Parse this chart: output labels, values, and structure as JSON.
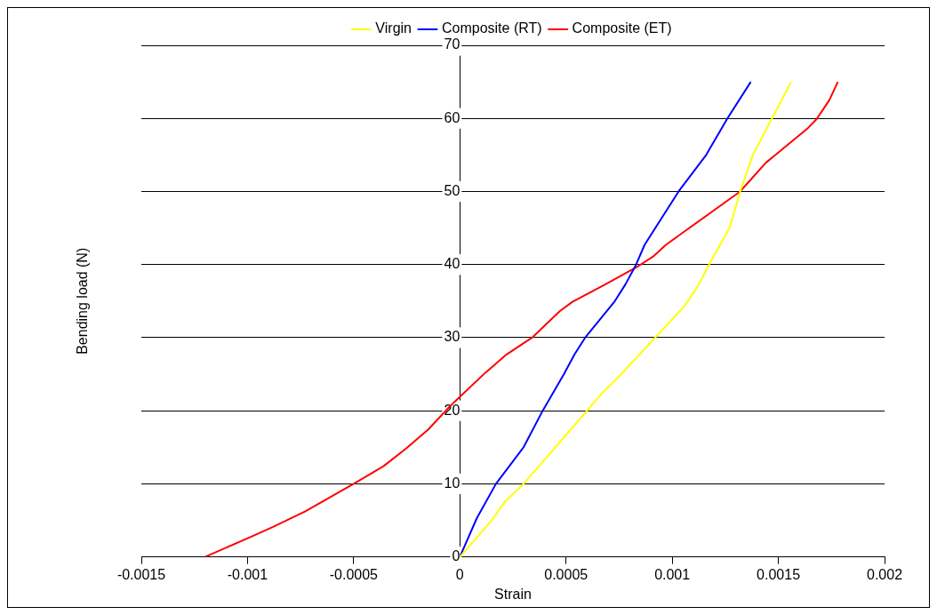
{
  "chart_data": {
    "type": "line",
    "xlabel": "Strain",
    "ylabel": "Bending load (N)",
    "xlim": [
      -0.0015,
      0.002
    ],
    "xticks": [
      -0.0015,
      -0.001,
      -0.0005,
      0,
      0.0005,
      0.001,
      0.0015,
      0.002
    ],
    "ylim": [
      0,
      70
    ],
    "yticks": [
      0,
      10,
      20,
      30,
      40,
      50,
      60,
      70
    ],
    "grid": "y",
    "legend": "top",
    "marker": "none",
    "line_style": "solid",
    "series": [
      {
        "name": "Virgin",
        "color": "#ffff00",
        "x": [
          0,
          0.00015,
          0.00021,
          0.0003,
          0.00045,
          0.00067,
          0.00075,
          0.00091,
          0.00106,
          0.00112,
          0.00117,
          0.00127,
          0.00132,
          0.00138,
          0.00147,
          0.00156
        ],
        "values": [
          0,
          5,
          7.5,
          10,
          15,
          22.4,
          24.7,
          29.7,
          34.4,
          37,
          39.8,
          45,
          50,
          55,
          60,
          65
        ]
      },
      {
        "name": "Composite (RT)",
        "color": "#0000ff",
        "x": [
          0,
          8e-05,
          0.00017,
          0.0003,
          0.00039,
          0.00049,
          0.00054,
          0.00059,
          0.00073,
          0.00078,
          0.00083,
          0.00087,
          0.00103,
          0.00116,
          0.00126,
          0.00137
        ],
        "values": [
          0,
          5.3,
          10,
          15,
          20,
          25,
          27.7,
          30,
          35,
          37.3,
          40,
          42.7,
          50,
          55,
          60,
          65
        ]
      },
      {
        "name": "Composite (ET)",
        "color": "#ff0000",
        "x": [
          -0.0012,
          -0.00098,
          -0.00088,
          -0.00073,
          -0.0005,
          -0.00036,
          -0.00025,
          -0.00015,
          -5e-05,
          0,
          0.00012,
          0.00022,
          0.00034,
          0.00047,
          0.00053,
          0.00068,
          0.00083,
          0.00091,
          0.00097,
          0.00132,
          0.00136,
          0.00144,
          0.00149,
          0.00164,
          0.00168,
          0.00171,
          0.00174,
          0.00178
        ],
        "values": [
          0,
          2.8,
          4.1,
          6.2,
          10,
          12.4,
          14.9,
          17.4,
          20.5,
          21.9,
          25.2,
          27.7,
          30,
          33.6,
          34.9,
          37.2,
          39.6,
          41.1,
          42.7,
          50,
          51.3,
          53.9,
          55.1,
          58.7,
          59.9,
          61.2,
          62.5,
          65
        ]
      }
    ]
  }
}
